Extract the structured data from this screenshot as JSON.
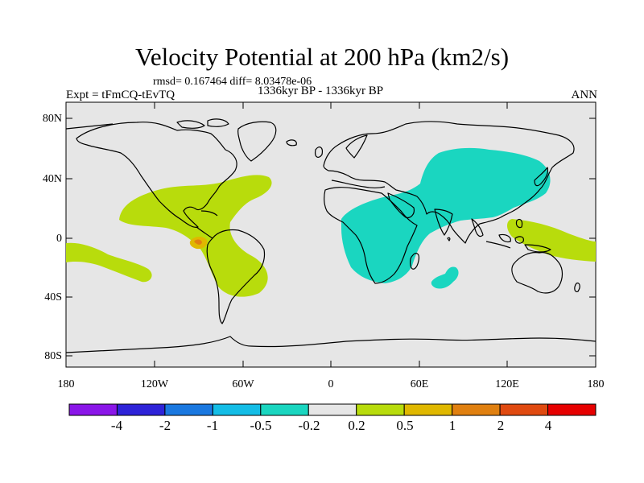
{
  "title": "Velocity Potential at 200 hPa (km2/s)",
  "stats": "rmsd= 0.167464  diff= 8.03478e-06",
  "experiment": "Expt = tFmCQ-tEvTQ",
  "period": "1336kyr BP - 1336kyr BP",
  "season": "ANN",
  "map": {
    "lat_ticks": [
      "80N",
      "40N",
      "0",
      "40S",
      "80S"
    ],
    "lon_ticks": [
      "180",
      "120W",
      "60W",
      "0",
      "60E",
      "120E",
      "180"
    ],
    "ocean_color": "#e6e6e6",
    "coast_color": "#000000"
  },
  "colorbar": {
    "labels": [
      "-4",
      "-2",
      "-1",
      "-0.5",
      "-0.2",
      "0.2",
      "0.5",
      "1",
      "2",
      "4"
    ],
    "colors": [
      "#8a16e8",
      "#2e23d8",
      "#1a78e0",
      "#14bde6",
      "#1ad6c0",
      "#e6e6e6",
      "#b8dc0c",
      "#e0b800",
      "#e08010",
      "#e04a10",
      "#e60000"
    ]
  }
}
